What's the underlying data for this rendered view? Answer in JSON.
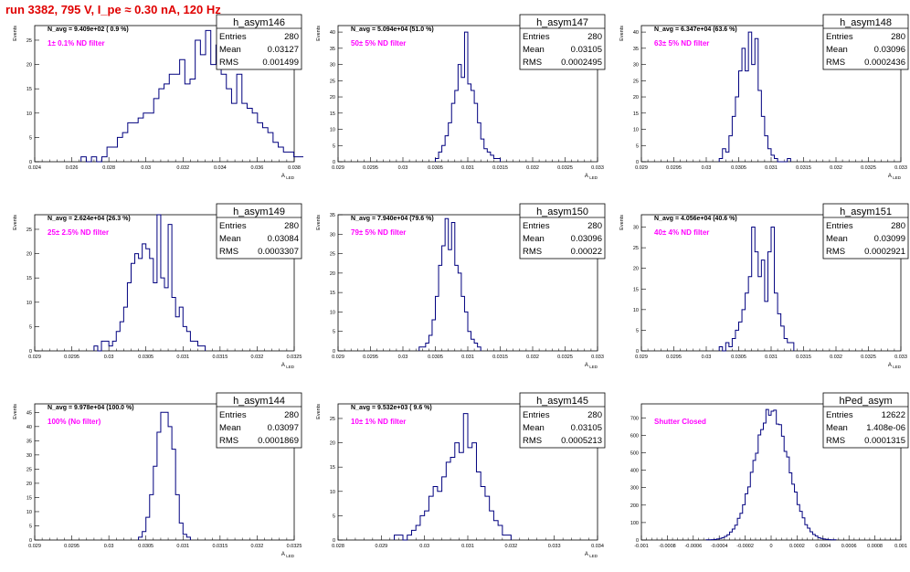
{
  "page": {
    "title": "run 3382,   795 V, I_pe ≈ 0.30 nA, 120 Hz"
  },
  "chart_data": [
    {
      "type": "bar",
      "name": "h_asym146",
      "ylabel": "Events",
      "xlabel": "A_LED",
      "navg": "N_avg = 9.409e+02 ( 0.9 %)",
      "filter": "1± 0.1% ND filter",
      "stats": {
        "entries": "280",
        "mean": "0.03127",
        "rms": "0.001499"
      },
      "xlim": [
        0.024,
        0.038
      ],
      "ylim": [
        0,
        28
      ],
      "xticks": [
        "0.024",
        "0.026",
        "0.028",
        "0.03",
        "0.032",
        "0.034",
        "0.036",
        "0.038"
      ],
      "xtick_values": [
        0.024,
        0.026,
        0.028,
        0.03,
        0.032,
        0.034,
        0.036,
        0.038
      ],
      "yticks": [
        0,
        5,
        10,
        15,
        20,
        25
      ],
      "bin_start": 0.0265,
      "bin_width": 0.00028,
      "counts": [
        1,
        0,
        1,
        0,
        1,
        3,
        3,
        5,
        6,
        8,
        8,
        9,
        10,
        10,
        13,
        15,
        16,
        18,
        18,
        21,
        16,
        17,
        25,
        22,
        27,
        20,
        24,
        18,
        15,
        12,
        18,
        12,
        11,
        10,
        8,
        7,
        6,
        4,
        3,
        2,
        2,
        1,
        1
      ]
    },
    {
      "type": "bar",
      "name": "h_asym147",
      "ylabel": "Events",
      "xlabel": "A_LED",
      "navg": "N_avg = 5.094e+04 (51.0 %)",
      "filter": "50± 5% ND filter",
      "stats": {
        "entries": "280",
        "mean": "0.03105",
        "rms": "0.0002495"
      },
      "xlim": [
        0.029,
        0.033
      ],
      "ylim": [
        0,
        42
      ],
      "xticks": [
        "0.029",
        "0.0295",
        "0.03",
        "0.0305",
        "0.031",
        "0.0315",
        "0.032",
        "0.0325",
        "0.033"
      ],
      "xtick_values": [
        0.029,
        0.0295,
        0.03,
        0.0305,
        0.031,
        0.0315,
        0.032,
        0.0325,
        0.033
      ],
      "yticks": [
        0,
        5,
        10,
        15,
        20,
        25,
        30,
        35,
        40
      ],
      "bin_start": 0.0305,
      "bin_width": 5e-05,
      "counts": [
        1,
        3,
        5,
        8,
        12,
        18,
        22,
        30,
        26,
        40,
        24,
        22,
        18,
        12,
        7,
        4,
        3,
        2,
        1,
        1
      ]
    },
    {
      "type": "bar",
      "name": "h_asym148",
      "ylabel": "Events",
      "xlabel": "A_LED",
      "navg": "N_avg = 6.347e+04 (63.6 %)",
      "filter": "63± 5% ND filter",
      "stats": {
        "entries": "280",
        "mean": "0.03096",
        "rms": "0.0002436"
      },
      "xlim": [
        0.029,
        0.033
      ],
      "ylim": [
        0,
        42
      ],
      "xticks": [
        "0.029",
        "0.0295",
        "0.03",
        "0.0305",
        "0.031",
        "0.0315",
        "0.032",
        "0.0325",
        "0.033"
      ],
      "xtick_values": [
        0.029,
        0.0295,
        0.03,
        0.0305,
        0.031,
        0.0315,
        0.032,
        0.0325,
        0.033
      ],
      "yticks": [
        0,
        5,
        10,
        15,
        20,
        25,
        30,
        35,
        40
      ],
      "bin_start": 0.0302,
      "bin_width": 5e-05,
      "counts": [
        1,
        4,
        3,
        8,
        14,
        20,
        28,
        35,
        28,
        40,
        30,
        38,
        22,
        14,
        8,
        4,
        2,
        1,
        0,
        0,
        0,
        1
      ]
    },
    {
      "type": "bar",
      "name": "h_asym149",
      "ylabel": "Events",
      "xlabel": "A_LED",
      "navg": "N_avg = 2.624e+04 (26.3 %)",
      "filter": "25± 2.5% ND filter",
      "stats": {
        "entries": "280",
        "mean": "0.03084",
        "rms": "0.0003307"
      },
      "xlim": [
        0.029,
        0.0325
      ],
      "ylim": [
        0,
        28
      ],
      "xticks": [
        "0.029",
        "0.0295",
        "0.03",
        "0.0305",
        "0.031",
        "0.0315",
        "0.032",
        "0.0325"
      ],
      "xtick_values": [
        0.029,
        0.0295,
        0.03,
        0.0305,
        0.031,
        0.0315,
        0.032,
        0.0325
      ],
      "yticks": [
        0,
        5,
        10,
        15,
        20,
        25
      ],
      "bin_start": 0.0298,
      "bin_width": 5e-05,
      "counts": [
        1,
        0,
        2,
        2,
        1,
        2,
        4,
        6,
        9,
        14,
        18,
        20,
        19,
        22,
        21,
        19,
        14,
        28,
        15,
        13,
        26,
        11,
        7,
        9,
        5,
        4,
        2,
        2,
        1,
        1
      ]
    },
    {
      "type": "bar",
      "name": "h_asym150",
      "ylabel": "Events",
      "xlabel": "A_LED",
      "navg": "N_avg = 7.940e+04 (79.6 %)",
      "filter": "79± 5% ND filter",
      "stats": {
        "entries": "280",
        "mean": "0.03096",
        "rms": "0.00022"
      },
      "xlim": [
        0.029,
        0.033
      ],
      "ylim": [
        0,
        35
      ],
      "xticks": [
        "0.029",
        "0.0295",
        "0.03",
        "0.0305",
        "0.031",
        "0.0315",
        "0.032",
        "0.0325",
        "0.033"
      ],
      "xtick_values": [
        0.029,
        0.0295,
        0.03,
        0.0305,
        0.031,
        0.0315,
        0.032,
        0.0325,
        0.033
      ],
      "yticks": [
        0,
        5,
        10,
        15,
        20,
        25,
        30,
        35
      ],
      "bin_start": 0.03025,
      "bin_width": 5e-05,
      "counts": [
        1,
        1,
        2,
        4,
        8,
        14,
        22,
        27,
        34,
        26,
        33,
        22,
        20,
        14,
        10,
        5,
        3,
        2,
        1
      ]
    },
    {
      "type": "bar",
      "name": "h_asym151",
      "ylabel": "Events",
      "xlabel": "A_LED",
      "navg": "N_avg = 4.056e+04 (40.6 %)",
      "filter": "40± 4% ND filter",
      "stats": {
        "entries": "280",
        "mean": "0.03099",
        "rms": "0.0002921"
      },
      "xlim": [
        0.029,
        0.033
      ],
      "ylim": [
        0,
        33
      ],
      "xticks": [
        "0.029",
        "0.0295",
        "0.03",
        "0.0305",
        "0.031",
        "0.0315",
        "0.032",
        "0.0325",
        "0.033"
      ],
      "xtick_values": [
        0.029,
        0.0295,
        0.03,
        0.0305,
        0.031,
        0.0315,
        0.032,
        0.0325,
        0.033
      ],
      "yticks": [
        0,
        5,
        10,
        15,
        20,
        25,
        30
      ],
      "bin_start": 0.0302,
      "bin_width": 5e-05,
      "counts": [
        1,
        0,
        2,
        1,
        3,
        5,
        7,
        10,
        14,
        18,
        30,
        24,
        18,
        22,
        12,
        24,
        30,
        14,
        9,
        6,
        3,
        2,
        2
      ]
    },
    {
      "type": "bar",
      "name": "h_asym144",
      "ylabel": "Events",
      "xlabel": "A_LED",
      "navg": "N_avg = 9.978e+04 (100.0 %)",
      "filter": "100% (No filter)",
      "stats": {
        "entries": "280",
        "mean": "0.03097",
        "rms": "0.0001869"
      },
      "xlim": [
        0.029,
        0.0325
      ],
      "ylim": [
        0,
        48
      ],
      "xticks": [
        "0.029",
        "0.0295",
        "0.03",
        "0.0305",
        "0.031",
        "0.0315",
        "0.032",
        "0.0325"
      ],
      "xtick_values": [
        0.029,
        0.0295,
        0.03,
        0.0305,
        0.031,
        0.0315,
        0.032,
        0.0325
      ],
      "yticks": [
        0,
        5,
        10,
        15,
        20,
        25,
        30,
        35,
        40,
        45
      ],
      "bin_start": 0.0304,
      "bin_width": 5e-05,
      "counts": [
        1,
        3,
        8,
        16,
        26,
        38,
        45,
        45,
        40,
        32,
        16,
        6,
        2,
        1
      ]
    },
    {
      "type": "bar",
      "name": "h_asym145",
      "ylabel": "Events",
      "xlabel": "A_LED",
      "navg": "N_avg = 9.532e+03 ( 9.6 %)",
      "filter": "10± 1% ND filter",
      "stats": {
        "entries": "280",
        "mean": "0.03105",
        "rms": "0.0005213"
      },
      "xlim": [
        0.028,
        0.034
      ],
      "ylim": [
        0,
        28
      ],
      "xticks": [
        "0.028",
        "0.029",
        "0.03",
        "0.031",
        "0.032",
        "0.033",
        "0.034"
      ],
      "xtick_values": [
        0.028,
        0.029,
        0.03,
        0.031,
        0.032,
        0.033,
        0.034
      ],
      "yticks": [
        0,
        5,
        10,
        15,
        20,
        25
      ],
      "bin_start": 0.0293,
      "bin_width": 0.0001,
      "counts": [
        1,
        1,
        0,
        1,
        2,
        3,
        5,
        6,
        9,
        11,
        10,
        13,
        16,
        17,
        20,
        18,
        26,
        19,
        20,
        14,
        11,
        9,
        6,
        4,
        3,
        1,
        1
      ]
    },
    {
      "type": "bar",
      "name": "hPed_asym",
      "ylabel": "",
      "xlabel": "",
      "navg": "",
      "filter": "Shutter Closed",
      "stats": {
        "entries": "12622",
        "mean": "1.408e-06",
        "rms": "0.0001315"
      },
      "xlim": [
        -0.001,
        0.001
      ],
      "ylim": [
        0,
        780
      ],
      "xticks": [
        "-0.001",
        "-0.0008",
        "-0.0006",
        "-0.0004",
        "-0.0002",
        "0",
        "0.0002",
        "0.0004",
        "0.0006",
        "0.0008",
        "0.001"
      ],
      "xtick_values": [
        -0.001,
        -0.0008,
        -0.0006,
        -0.0004,
        -0.0002,
        0,
        0.0002,
        0.0004,
        0.0006,
        0.0008,
        0.001
      ],
      "yticks": [
        0,
        100,
        200,
        300,
        400,
        500,
        600,
        700
      ],
      "gauss": {
        "amplitude": 740,
        "mean": 1.4e-06,
        "sigma": 0.0001315,
        "bin_width": 2e-05,
        "from": -0.0005,
        "to": 0.0005
      }
    }
  ],
  "colors": {
    "hist": "#00007f",
    "title": "#e00000",
    "filter": "#ff00ff",
    "axis": "#000000"
  },
  "labels": {
    "entries": "Entries",
    "mean": "Mean",
    "rms": "RMS"
  }
}
